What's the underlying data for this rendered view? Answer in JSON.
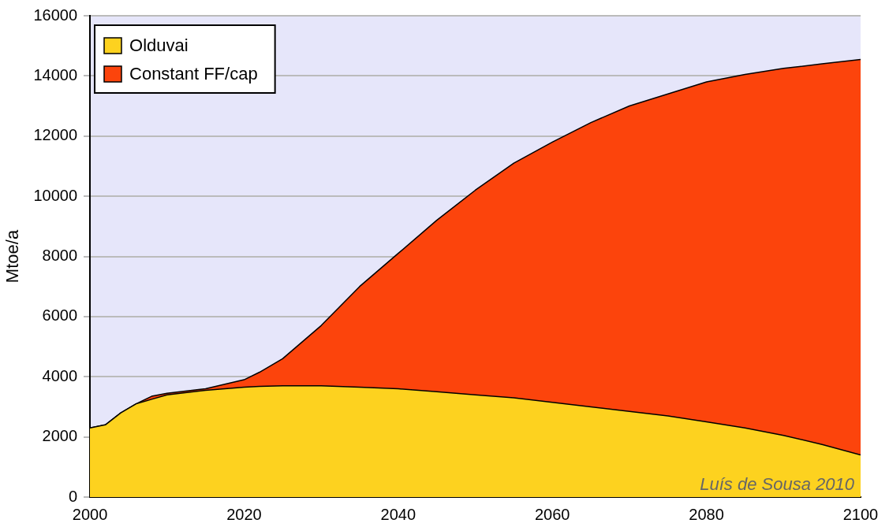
{
  "chart_data": {
    "type": "area",
    "ylabel": "Mtoe/a",
    "stacked": true,
    "x": [
      2000,
      2002,
      2004,
      2006,
      2008,
      2010,
      2015,
      2020,
      2022,
      2025,
      2030,
      2035,
      2040,
      2045,
      2050,
      2055,
      2060,
      2065,
      2070,
      2075,
      2080,
      2085,
      2090,
      2095,
      2100
    ],
    "series": [
      {
        "name": "Olduvai",
        "color": "#fdd21f",
        "values": [
          2300,
          2400,
          2800,
          3100,
          3250,
          3400,
          3550,
          3650,
          3680,
          3700,
          3700,
          3650,
          3600,
          3500,
          3400,
          3300,
          3150,
          3000,
          2850,
          2700,
          2500,
          2300,
          2050,
          1750,
          1400
        ]
      },
      {
        "name": "Constant FF/cap",
        "color": "#fc440c",
        "values": [
          0,
          0,
          0,
          0,
          100,
          50,
          50,
          250,
          470,
          900,
          2000,
          3350,
          4500,
          5700,
          6800,
          7800,
          8650,
          9450,
          10150,
          10700,
          11300,
          11750,
          12200,
          12650,
          13150
        ]
      }
    ],
    "xlim": [
      2000,
      2100
    ],
    "xticks": [
      2000,
      2020,
      2040,
      2060,
      2080,
      2100
    ],
    "ylim": [
      0,
      16000
    ],
    "yticks": [
      0,
      2000,
      4000,
      6000,
      8000,
      10000,
      12000,
      14000,
      16000
    ],
    "grid": "y",
    "legend": "top left",
    "marker": "none",
    "line_style": "solid",
    "annotations": [
      "Luís de Sousa 2010"
    ]
  }
}
